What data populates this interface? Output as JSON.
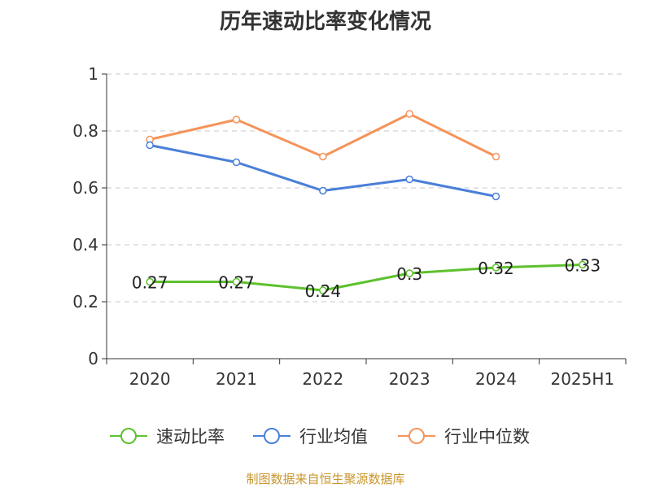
{
  "chart_data": {
    "type": "line",
    "title": "历年速动比率变化情况",
    "categories": [
      "2020",
      "2021",
      "2022",
      "2023",
      "2024",
      "2025H1"
    ],
    "ylim": [
      0,
      1
    ],
    "yticks": [
      "0",
      "0.2",
      "0.4",
      "0.6",
      "0.8",
      "1"
    ],
    "ytick_values": [
      0,
      0.2,
      0.4,
      0.6,
      0.8,
      1
    ],
    "grid": true,
    "legend_position": "bottom",
    "series": [
      {
        "name": "速动比率",
        "color": "#5dc12d",
        "values": [
          0.27,
          0.27,
          0.24,
          0.3,
          0.32,
          0.33
        ],
        "labels": [
          "0.27",
          "0.27",
          "0.24",
          "0.3",
          "0.32",
          "0.33"
        ]
      },
      {
        "name": "行业均值",
        "color": "#4a7fd8",
        "values": [
          0.75,
          0.69,
          0.59,
          0.63,
          0.57,
          null
        ]
      },
      {
        "name": "行业中位数",
        "color": "#f5935a",
        "values": [
          0.77,
          0.84,
          0.71,
          0.86,
          0.71,
          null
        ]
      }
    ]
  },
  "source": "制图数据来自恒生聚源数据库"
}
